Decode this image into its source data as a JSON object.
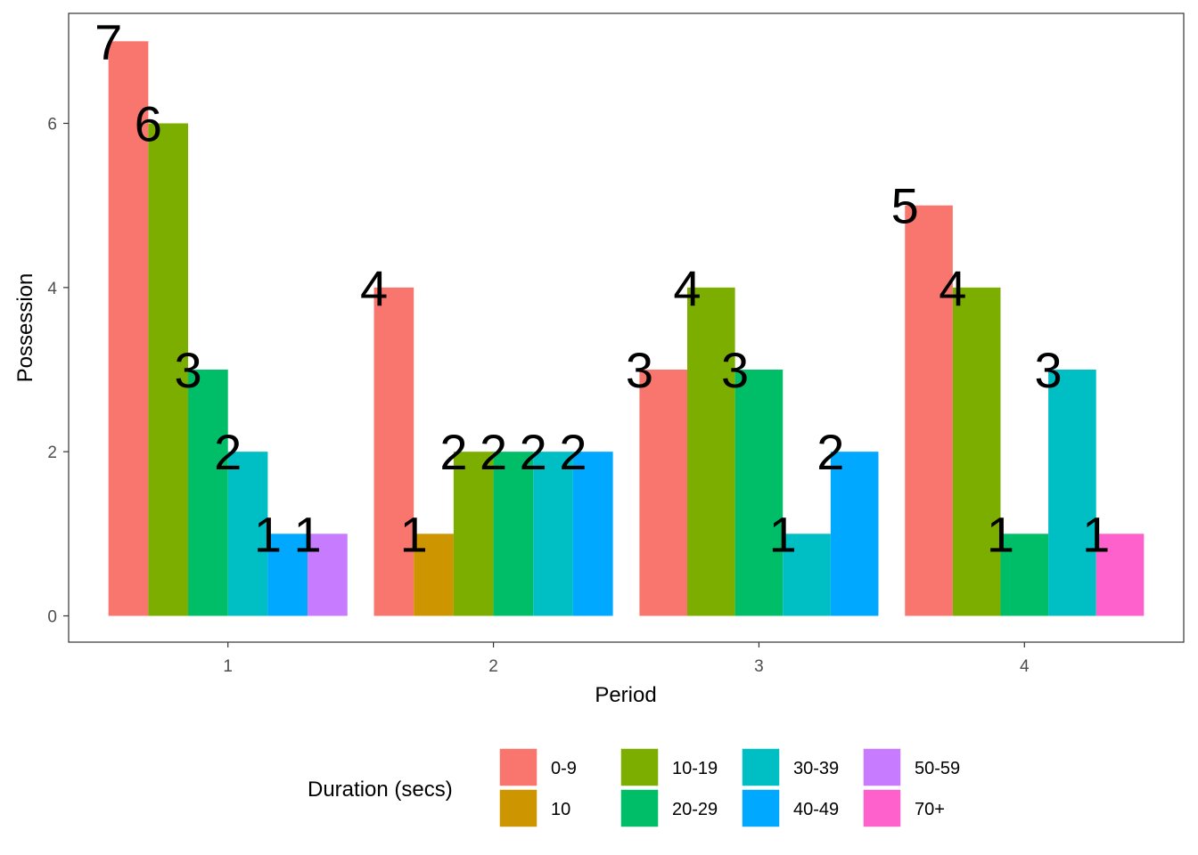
{
  "chart_data": {
    "type": "bar",
    "xlabel": "Period",
    "ylabel": "Possession",
    "categories": [
      "1",
      "2",
      "3",
      "4"
    ],
    "ylim": [
      -0.32,
      7.34
    ],
    "yticks": [
      "0",
      "2",
      "4",
      "6"
    ],
    "grid": false,
    "legend_title": "Duration (secs)",
    "legend_position": "bottom",
    "series": [
      {
        "name": "0-9",
        "color": "#F8766D",
        "values": [
          7,
          4,
          3,
          5
        ]
      },
      {
        "name": "10",
        "color": "#CD9600",
        "values": [
          null,
          1,
          null,
          null
        ]
      },
      {
        "name": "10-19",
        "color": "#7CAE00",
        "values": [
          6,
          2,
          4,
          4
        ]
      },
      {
        "name": "20-29",
        "color": "#00BE67",
        "values": [
          3,
          2,
          3,
          1
        ]
      },
      {
        "name": "30-39",
        "color": "#00BFC4",
        "values": [
          2,
          2,
          1,
          3
        ]
      },
      {
        "name": "40-49",
        "color": "#00A9FF",
        "values": [
          1,
          2,
          2,
          null
        ]
      },
      {
        "name": "50-59",
        "color": "#C77CFF",
        "values": [
          1,
          null,
          null,
          null
        ]
      },
      {
        "name": "70+",
        "color": "#FF61CC",
        "values": [
          null,
          null,
          null,
          1
        ]
      }
    ]
  }
}
